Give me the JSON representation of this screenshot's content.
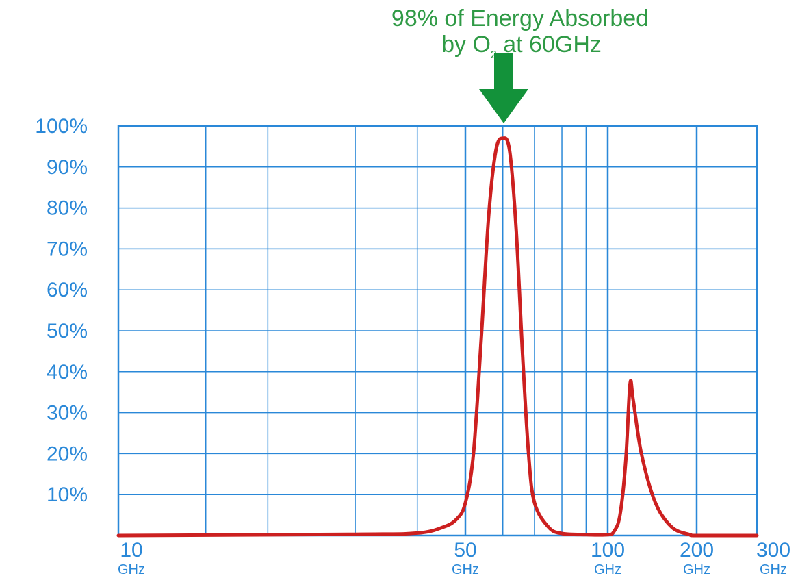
{
  "colors": {
    "grid": "#2a88d8",
    "curve": "#cc2020",
    "annotation": "#2f9a45",
    "arrow": "#13923a",
    "tick_text": "#2a88d8"
  },
  "annotation": {
    "line1": "98% of Energy Absorbed",
    "line2_prefix": "by O",
    "line2_subscript": "2",
    "line2_suffix": " at 60GHz",
    "arrow_icon": "down-arrow-icon"
  },
  "chart_data": {
    "type": "line",
    "title": "",
    "xlabel": "",
    "ylabel": "",
    "x_scale": "log",
    "xlim": [
      10,
      300
    ],
    "ylim": [
      0,
      100
    ],
    "grid": true,
    "y_ticks": [
      {
        "value": 100,
        "label": "100%"
      },
      {
        "value": 90,
        "label": "90%"
      },
      {
        "value": 80,
        "label": "80%"
      },
      {
        "value": 70,
        "label": "70%"
      },
      {
        "value": 60,
        "label": "60%"
      },
      {
        "value": 50,
        "label": "50%"
      },
      {
        "value": 40,
        "label": "40%"
      },
      {
        "value": 30,
        "label": "30%"
      },
      {
        "value": 20,
        "label": "20%"
      },
      {
        "value": 10,
        "label": "10%"
      }
    ],
    "x_ticks": [
      {
        "value": 10,
        "label": "10",
        "unit": "GHz"
      },
      {
        "value": 50,
        "label": "50",
        "unit": "GHz"
      },
      {
        "value": 100,
        "label": "100",
        "unit": "GHz"
      },
      {
        "value": 200,
        "label": "200",
        "unit": "GHz"
      },
      {
        "value": 300,
        "label": "300",
        "unit": "GHz"
      }
    ],
    "x_gridlines": [
      10,
      15,
      20,
      30,
      40,
      50,
      60,
      70,
      80,
      90,
      100,
      200,
      300
    ],
    "series": [
      {
        "values": [
          {
            "x": 10,
            "y": 0
          },
          {
            "x": 30,
            "y": 0.3
          },
          {
            "x": 40,
            "y": 0.6
          },
          {
            "x": 45,
            "y": 2
          },
          {
            "x": 48,
            "y": 4
          },
          {
            "x": 50,
            "y": 8
          },
          {
            "x": 52,
            "y": 20
          },
          {
            "x": 54,
            "y": 48
          },
          {
            "x": 56,
            "y": 78
          },
          {
            "x": 58,
            "y": 94
          },
          {
            "x": 60,
            "y": 97
          },
          {
            "x": 62,
            "y": 94
          },
          {
            "x": 64,
            "y": 75
          },
          {
            "x": 66,
            "y": 45
          },
          {
            "x": 68,
            "y": 20
          },
          {
            "x": 70,
            "y": 8
          },
          {
            "x": 75,
            "y": 2
          },
          {
            "x": 80,
            "y": 0.5
          },
          {
            "x": 90,
            "y": 0.2
          },
          {
            "x": 100,
            "y": 0.2
          },
          {
            "x": 105,
            "y": 1
          },
          {
            "x": 110,
            "y": 5
          },
          {
            "x": 115,
            "y": 18
          },
          {
            "x": 119,
            "y": 37
          },
          {
            "x": 122,
            "y": 33
          },
          {
            "x": 130,
            "y": 20
          },
          {
            "x": 145,
            "y": 8
          },
          {
            "x": 165,
            "y": 2
          },
          {
            "x": 190,
            "y": 0.2
          },
          {
            "x": 200,
            "y": 0
          },
          {
            "x": 300,
            "y": 0
          }
        ]
      }
    ]
  }
}
